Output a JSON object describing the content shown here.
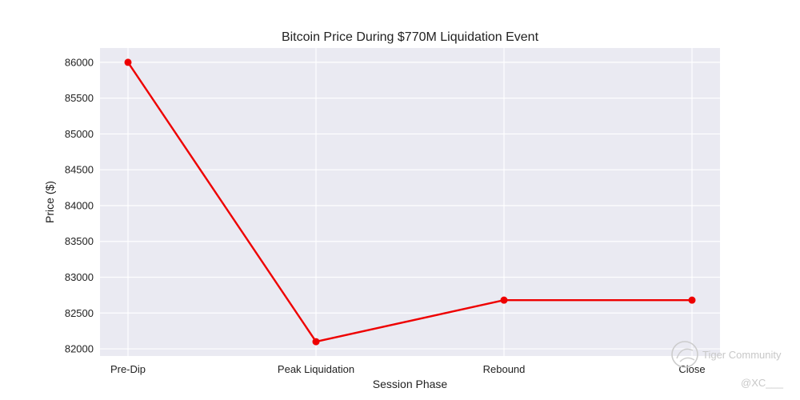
{
  "chart_data": {
    "type": "line",
    "title": "Bitcoin Price During $770M Liquidation Event",
    "xlabel": "Session Phase",
    "ylabel": "Price ($)",
    "categories": [
      "Pre-Dip",
      "Peak Liquidation",
      "Rebound",
      "Close"
    ],
    "series": [
      {
        "name": "Price",
        "values": [
          86000,
          82100,
          82680,
          82680
        ]
      }
    ],
    "ylim": [
      81900,
      86200
    ],
    "yticks": [
      82000,
      82500,
      83000,
      83500,
      84000,
      84500,
      85000,
      85500,
      86000
    ],
    "grid": true,
    "line_color": "#ee0000",
    "background_color": "#eaeaf2"
  },
  "watermark": {
    "brand": "Tiger Community",
    "user": "@XC___",
    "icon": "tiger-logo-icon"
  }
}
